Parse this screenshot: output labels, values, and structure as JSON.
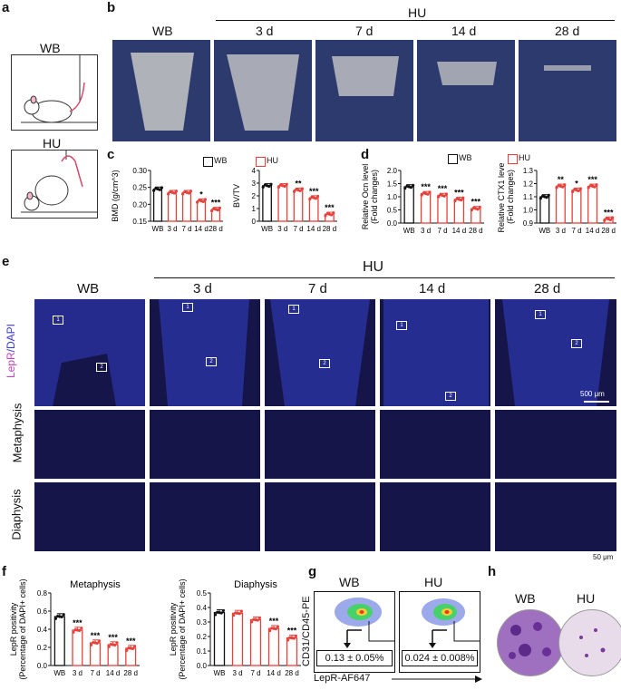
{
  "panels": {
    "a": {
      "letter": "a",
      "wb": "WB",
      "hu": "HU"
    },
    "b": {
      "letter": "b",
      "hu_header": "HU",
      "groups": [
        "WB",
        "3 d",
        "7 d",
        "14 d",
        "28 d"
      ]
    },
    "c": {
      "letter": "c",
      "legend": [
        "WB",
        "HU"
      ],
      "charts": [
        {
          "ylabel": "BMD (g/cm^3)",
          "ticks": [
            "0.30",
            "0.25",
            "0.20",
            "0.15"
          ],
          "ylim": [
            0.15,
            0.3
          ],
          "categories": [
            "WB",
            "3 d",
            "7 d",
            "14 d",
            "28 d"
          ],
          "values": [
            0.245,
            0.235,
            0.235,
            0.21,
            0.185
          ],
          "sig": [
            "",
            "",
            "",
            "*",
            "***"
          ]
        },
        {
          "ylabel": "BV/TV",
          "ticks": [
            "4",
            "3",
            "2",
            "1",
            "0"
          ],
          "ylim": [
            0,
            4
          ],
          "categories": [
            "WB",
            "3 d",
            "7 d",
            "14 d",
            "28 d"
          ],
          "values": [
            2.8,
            2.8,
            2.45,
            1.85,
            0.55
          ],
          "sig": [
            "",
            "",
            "**",
            "***",
            "***"
          ]
        }
      ]
    },
    "d": {
      "letter": "d",
      "legend": [
        "WB",
        "HU"
      ],
      "charts": [
        {
          "ylabel": "Relative Ocn level",
          "ylabel2": "(Fold changes)",
          "ticks": [
            "2.0",
            "1.5",
            "1.0",
            "0.5",
            "0.0"
          ],
          "ylim": [
            0,
            2
          ],
          "categories": [
            "WB",
            "3 d",
            "7 d",
            "14 d",
            "28 d"
          ],
          "values": [
            1.38,
            1.12,
            1.05,
            0.9,
            0.55
          ],
          "sig": [
            "",
            "***",
            "***",
            "***",
            "***"
          ]
        },
        {
          "ylabel": "Relative CTX1 level",
          "ylabel2": "(Fold changes)",
          "ticks": [
            "1.3",
            "1.2",
            "1.1",
            "1.0",
            "0.9"
          ],
          "ylim": [
            0.9,
            1.3
          ],
          "categories": [
            "WB",
            "3 d",
            "7 d",
            "14 d",
            "28 d"
          ],
          "values": [
            1.1,
            1.18,
            1.15,
            1.18,
            0.93
          ],
          "sig": [
            "",
            "**",
            "*",
            "***",
            "***"
          ]
        }
      ]
    },
    "e": {
      "letter": "e",
      "hu_header": "HU",
      "groups": [
        "WB",
        "3 d",
        "7 d",
        "14 d",
        "28 d"
      ],
      "stain_lepr": "LepR",
      "stain_sep": "/",
      "stain_dapi": "DAPI",
      "row_metaphysis": "Metaphysis",
      "row_diaphysis": "Diaphysis",
      "scale_top": "500 μm",
      "scale_bottom": "50 μm",
      "box1": "1",
      "box2": "2"
    },
    "f": {
      "letter": "f",
      "charts": [
        {
          "title": "Metaphysis",
          "ylabel": "LepR positivity",
          "ylabel2": "(Percentage of DAPI+ cells)",
          "ticks": [
            "0.8",
            "0.6",
            "0.4",
            "0.2",
            "0.0"
          ],
          "ylim": [
            0,
            0.8
          ],
          "categories": [
            "WB",
            "3 d",
            "7 d",
            "14 d",
            "28 d"
          ],
          "values": [
            0.54,
            0.39,
            0.25,
            0.23,
            0.19
          ],
          "sig": [
            "",
            "***",
            "***",
            "***",
            "***"
          ]
        },
        {
          "title": "Diaphysis",
          "ylabel": "LepR positivity",
          "ylabel2": "(Percentage of DAPI+ cells)",
          "ticks": [
            "0.5",
            "0.4",
            "0.3",
            "0.2",
            "0.1",
            "0.0"
          ],
          "ylim": [
            0,
            0.5
          ],
          "categories": [
            "WB",
            "3 d",
            "7 d",
            "14 d",
            "28 d"
          ],
          "values": [
            0.365,
            0.36,
            0.315,
            0.255,
            0.19
          ],
          "sig": [
            "",
            "",
            "",
            "***",
            "***"
          ]
        }
      ]
    },
    "g": {
      "letter": "g",
      "wb": "WB",
      "hu": "HU",
      "ylabel": "CD31/CD45-PE",
      "xlabel": "LepR-AF647",
      "wb_value": "0.13 ± 0.05%",
      "hu_value": "0.024 ± 0.008%"
    },
    "h": {
      "letter": "h",
      "wb": "WB",
      "hu": "HU"
    }
  },
  "colors": {
    "wb": "#111111",
    "hu": "#e8403a",
    "fluor_bg": "#15154a",
    "lepr": "#d05cc8",
    "ct_bg": "#2c3a6e"
  }
}
